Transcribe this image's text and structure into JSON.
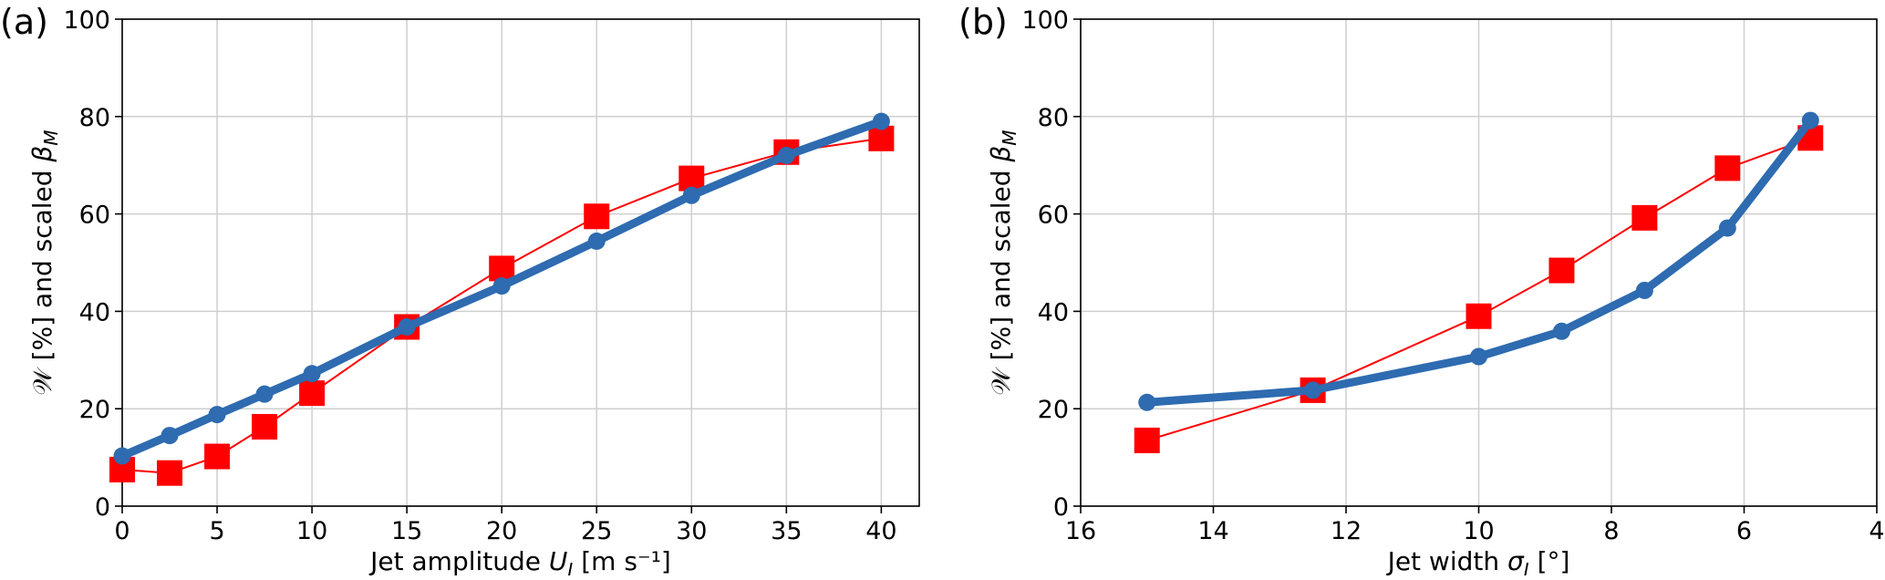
{
  "chart_data": [
    {
      "type": "line",
      "panel_label": "(a)",
      "xlabel": "Jet amplitude U_J [m s⁻¹]",
      "ylabel": "𝒲 [%] and scaled β_M",
      "xlim": [
        0,
        42
      ],
      "ylim": [
        0,
        100
      ],
      "x_ticks": [
        0,
        5,
        10,
        15,
        20,
        25,
        30,
        35,
        40
      ],
      "y_ticks": [
        0,
        20,
        40,
        60,
        80,
        100
      ],
      "x_reversed": false,
      "grid": true,
      "series": [
        {
          "color": "#ff0000",
          "marker": "square",
          "x": [
            0,
            2.5,
            5,
            7.5,
            10,
            15,
            20,
            25,
            30,
            35,
            40
          ],
          "values": [
            7.5,
            6.8,
            10.2,
            16.3,
            23.2,
            36.8,
            48.8,
            59.5,
            67.3,
            72.7,
            75.5
          ]
        },
        {
          "color": "#2e6bb0",
          "marker": "circle",
          "x": [
            0,
            2.5,
            5,
            7.5,
            10,
            15,
            20,
            25,
            30,
            35,
            40
          ],
          "values": [
            10.3,
            14.5,
            18.8,
            23.0,
            27.2,
            36.8,
            45.2,
            54.4,
            63.8,
            72.0,
            79.0
          ]
        }
      ]
    },
    {
      "type": "line",
      "panel_label": "(b)",
      "xlabel": "Jet width σ_J [°]",
      "ylabel": "𝒲 [%] and scaled β_M",
      "xlim": [
        16,
        4
      ],
      "ylim": [
        0,
        100
      ],
      "x_ticks": [
        16,
        14,
        12,
        10,
        8,
        6,
        4
      ],
      "y_ticks": [
        0,
        20,
        40,
        60,
        80,
        100
      ],
      "x_reversed": true,
      "grid": true,
      "series": [
        {
          "color": "#ff0000",
          "marker": "square",
          "x": [
            15,
            12.5,
            10,
            8.75,
            7.5,
            6.25,
            5
          ],
          "values": [
            13.5,
            23.8,
            39.0,
            48.4,
            59.2,
            69.4,
            75.6
          ]
        },
        {
          "color": "#2e6bb0",
          "marker": "circle",
          "x": [
            15,
            12.5,
            10,
            8.75,
            7.5,
            6.25,
            5
          ],
          "values": [
            21.3,
            23.8,
            30.7,
            35.9,
            44.3,
            57.1,
            79.2
          ]
        }
      ]
    }
  ]
}
